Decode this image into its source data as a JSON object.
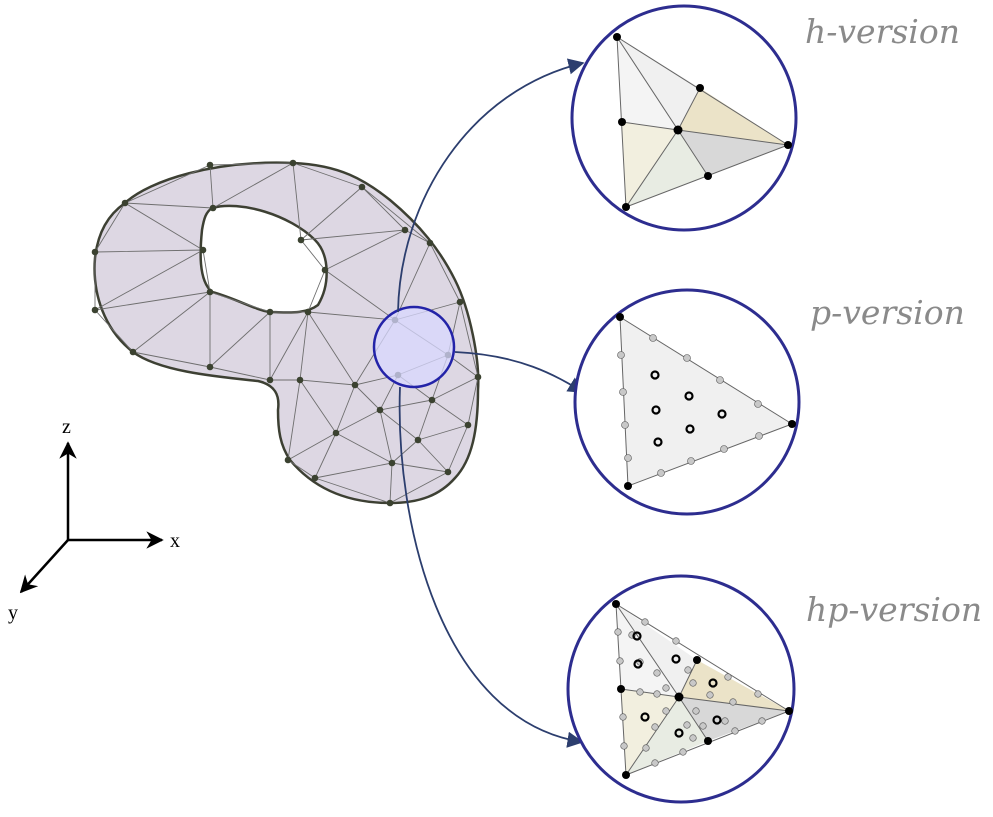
{
  "labels": {
    "h": "h-version",
    "p": "p-version",
    "hp": "hp-version"
  },
  "axes": {
    "z": "z",
    "x": "x",
    "y": "y"
  },
  "colors": {
    "mesh_fill": "#ddd7e3",
    "mesh_stroke": "#3d4033",
    "node": "#3b4230",
    "circle": "#2d2d8f",
    "arrow": "#2c3e6e",
    "zoom_fill": "#d8d8ff",
    "tri_light": "#f0f0f0",
    "tri_tan": "#ebe3c8",
    "tri_cream": "#f2efdf",
    "tri_mint": "#e8ece3",
    "tri_gray": "#d8d8d8"
  }
}
